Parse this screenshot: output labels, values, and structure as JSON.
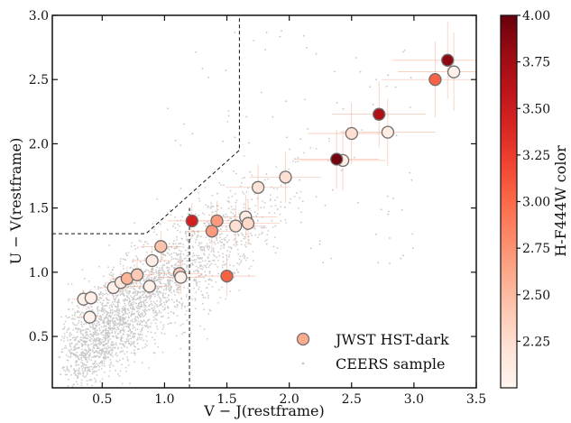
{
  "chart_data": {
    "type": "scatter",
    "title": "",
    "xlabel": "V − J(restframe)",
    "ylabel": "U − V(restframe)",
    "xlim": [
      0.1,
      3.5
    ],
    "ylim": [
      0.1,
      3.0
    ],
    "xticks": [
      0.5,
      1.0,
      1.5,
      2.0,
      2.5,
      3.0,
      3.5
    ],
    "yticks": [
      0.5,
      1.0,
      1.5,
      2.0,
      2.5,
      3.0
    ],
    "grid": false,
    "legend_position": "bottom-right",
    "colorbar": {
      "label": "H-F444W color",
      "range": [
        2.0,
        4.0
      ],
      "ticks": [
        2.25,
        2.5,
        2.75,
        3.0,
        3.25,
        3.5,
        3.75,
        4.0
      ],
      "colormap": "Reds"
    },
    "quiescent_boundary": [
      [
        0.1,
        1.3
      ],
      [
        0.85,
        1.3
      ],
      [
        1.6,
        1.95
      ],
      [
        1.6,
        3.0
      ]
    ],
    "vertical_cut": [
      [
        1.2,
        0.1
      ],
      [
        1.2,
        1.5
      ]
    ],
    "series": [
      {
        "name": "JWST HST-dark",
        "points": [
          {
            "x": 0.35,
            "y": 0.79,
            "c": 2.05
          },
          {
            "x": 0.41,
            "y": 0.8,
            "c": 2.08
          },
          {
            "x": 0.4,
            "y": 0.65,
            "c": 2.03
          },
          {
            "x": 0.59,
            "y": 0.88,
            "c": 2.05
          },
          {
            "x": 0.65,
            "y": 0.92,
            "c": 2.15
          },
          {
            "x": 0.7,
            "y": 0.95,
            "c": 2.55
          },
          {
            "x": 0.78,
            "y": 0.98,
            "c": 2.4
          },
          {
            "x": 0.88,
            "y": 0.89,
            "c": 2.05
          },
          {
            "x": 0.9,
            "y": 1.09,
            "c": 2.1
          },
          {
            "x": 0.97,
            "y": 1.2,
            "c": 2.45
          },
          {
            "x": 1.12,
            "y": 0.99,
            "c": 2.4
          },
          {
            "x": 1.13,
            "y": 0.96,
            "c": 2.05
          },
          {
            "x": 1.22,
            "y": 1.4,
            "c": 3.45
          },
          {
            "x": 1.38,
            "y": 1.32,
            "c": 2.7
          },
          {
            "x": 1.42,
            "y": 1.4,
            "c": 2.7
          },
          {
            "x": 1.5,
            "y": 0.97,
            "c": 3.05
          },
          {
            "x": 1.57,
            "y": 1.36,
            "c": 2.25
          },
          {
            "x": 1.65,
            "y": 1.43,
            "c": 2.1
          },
          {
            "x": 1.67,
            "y": 1.38,
            "c": 2.3
          },
          {
            "x": 1.75,
            "y": 1.66,
            "c": 2.2
          },
          {
            "x": 1.97,
            "y": 1.74,
            "c": 2.25
          },
          {
            "x": 2.43,
            "y": 1.87,
            "c": 2.1
          },
          {
            "x": 2.38,
            "y": 1.88,
            "c": 3.95
          },
          {
            "x": 2.5,
            "y": 2.08,
            "c": 2.25
          },
          {
            "x": 2.72,
            "y": 2.23,
            "c": 3.7
          },
          {
            "x": 2.79,
            "y": 2.09,
            "c": 2.1
          },
          {
            "x": 3.17,
            "y": 2.5,
            "c": 3.05
          },
          {
            "x": 3.27,
            "y": 2.65,
            "c": 3.85
          },
          {
            "x": 3.32,
            "y": 2.56,
            "c": 2.05
          }
        ]
      },
      {
        "name": "CEERS sample",
        "color": "#c4c4c4"
      }
    ]
  }
}
